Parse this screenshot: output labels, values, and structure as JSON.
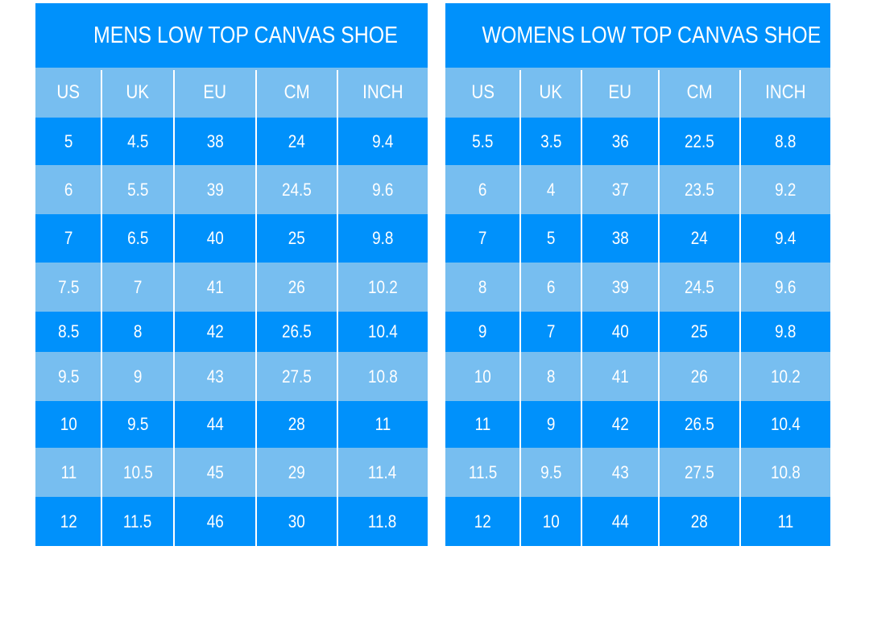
{
  "colors": {
    "dark": "#0091fb",
    "light": "#77bef0",
    "text": "#ffffff"
  },
  "tables": [
    {
      "title": "MENS LOW TOP CANVAS SHOE",
      "headers": [
        "US",
        "UK",
        "EU",
        "CM",
        "INCH"
      ],
      "rows": [
        [
          "5",
          "4.5",
          "38",
          "24",
          "9.4"
        ],
        [
          "6",
          "5.5",
          "39",
          "24.5",
          "9.6"
        ],
        [
          "7",
          "6.5",
          "40",
          "25",
          "9.8"
        ],
        [
          "7.5",
          "7",
          "41",
          "26",
          "10.2"
        ],
        [
          "8.5",
          "8",
          "42",
          "26.5",
          "10.4"
        ],
        [
          "9.5",
          "9",
          "43",
          "27.5",
          "10.8"
        ],
        [
          "10",
          "9.5",
          "44",
          "28",
          "11"
        ],
        [
          "11",
          "10.5",
          "45",
          "29",
          "11.4"
        ],
        [
          "12",
          "11.5",
          "46",
          "30",
          "11.8"
        ]
      ]
    },
    {
      "title": "WOMENS LOW TOP CANVAS SHOE",
      "headers": [
        "US",
        "UK",
        "EU",
        "CM",
        "INCH"
      ],
      "rows": [
        [
          "5.5",
          "3.5",
          "36",
          "22.5",
          "8.8"
        ],
        [
          "6",
          "4",
          "37",
          "23.5",
          "9.2"
        ],
        [
          "7",
          "5",
          "38",
          "24",
          "9.4"
        ],
        [
          "8",
          "6",
          "39",
          "24.5",
          "9.6"
        ],
        [
          "9",
          "7",
          "40",
          "25",
          "9.8"
        ],
        [
          "10",
          "8",
          "41",
          "26",
          "10.2"
        ],
        [
          "11",
          "9",
          "42",
          "26.5",
          "10.4"
        ],
        [
          "11.5",
          "9.5",
          "43",
          "27.5",
          "10.8"
        ],
        [
          "12",
          "10",
          "44",
          "28",
          "11"
        ]
      ]
    }
  ]
}
